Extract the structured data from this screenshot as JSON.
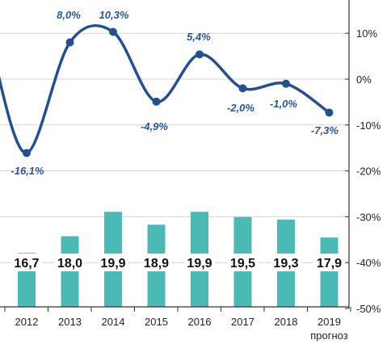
{
  "chart_data": {
    "type": "bar+line",
    "categories": [
      "2012",
      "2013",
      "2014",
      "2015",
      "2016",
      "2017",
      "2018",
      "2019"
    ],
    "category_sublabels": [
      "",
      "",
      "",
      "",
      "",
      "",
      "",
      "прогноз"
    ],
    "bar_series": {
      "values": [
        16.7,
        18.0,
        19.9,
        18.9,
        19.9,
        19.5,
        19.3,
        17.9
      ],
      "labels": [
        "16,7",
        "18,0",
        "19,9",
        "18,9",
        "19,9",
        "19,5",
        "19,3",
        "17,9"
      ],
      "color": "#4bbab4"
    },
    "line_series": {
      "values": [
        -16.1,
        8.0,
        10.3,
        -4.9,
        5.4,
        -2.0,
        -1.0,
        -7.3
      ],
      "labels": [
        "-16,1%",
        "8,0%",
        "10,3%",
        "-4,9%",
        "5,4%",
        "-2,0%",
        "-1,0%",
        "-7,3%"
      ],
      "color": "#24508f"
    },
    "right_axis": {
      "ticks": [
        10,
        0,
        -10,
        -20,
        -30,
        -40,
        -50
      ],
      "tick_labels": [
        "10%",
        "0%",
        "-10%",
        "-20%",
        "-30%",
        "-40%",
        "-50%"
      ],
      "range": [
        -50,
        18
      ]
    },
    "grid": true
  }
}
